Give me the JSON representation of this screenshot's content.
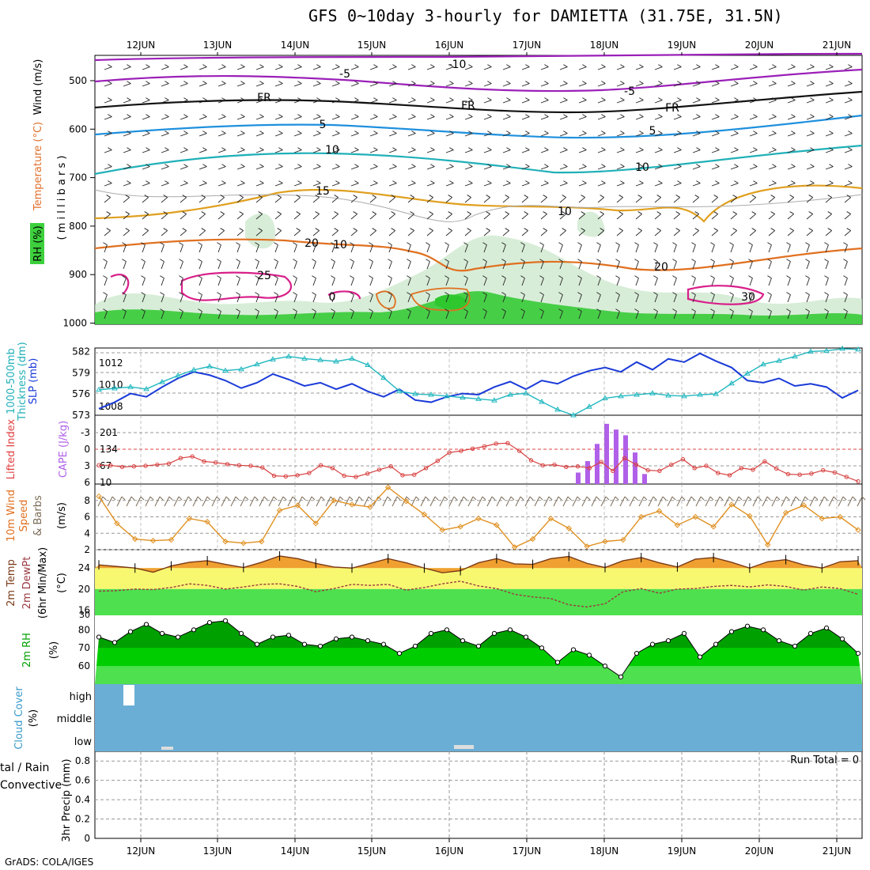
{
  "title": "GFS 0~10day 3-hourly for DAMIETTA (31.75E, 31.5N)",
  "credit": "GrADS: COLA/IGES",
  "dates": [
    "12JUN",
    "13JUN",
    "14JUN",
    "15JUN",
    "16JUN",
    "17JUN",
    "18JUN",
    "19JUN",
    "20JUN",
    "21JUN"
  ],
  "colors": {
    "rh_green": "#3dd03d",
    "slp_line": "#1a3ad8",
    "thick_line": "#22b8c0",
    "lifted_line": "#d84040",
    "cape_bar": "#b060e8",
    "wind_line": "#e09020",
    "temp_fill": "#f0a030",
    "dew_fill": "#f8f870",
    "rh_fill": "#00a000",
    "cloud_bg": "#6aaed6",
    "precip_grid": "#999999"
  },
  "panels": {
    "profile": {
      "ylabel_rh": "RH (%)",
      "ylabel_temp": "Temperature (°C)",
      "ylabel_wind": "Wind (m/s)",
      "ylabel_units": "( m i l l i b a r s )",
      "y_ticks": [
        "500",
        "600",
        "700",
        "800",
        "900",
        "1000"
      ],
      "contour_labels": [
        "-10",
        "-5",
        "-5",
        "FR",
        "FR",
        "FR",
        "5",
        "5",
        "10",
        "10",
        "15",
        "20",
        "20",
        "25",
        "0",
        "10",
        "10",
        "30"
      ]
    },
    "slp": {
      "ylabel_thick": "1000-500mb",
      "ylabel_thick2": "Thickness (dm)",
      "ylabel_slp": "SLP (mb)",
      "left_ticks": [
        "582",
        "579",
        "576",
        "573"
      ],
      "right_ticks": [
        "1012",
        "1010",
        "1008"
      ]
    },
    "cape": {
      "ylabel_li": "Lifted Index",
      "ylabel_cape": "CAPE (J/kg)",
      "left_ticks": [
        "-3",
        "0",
        "3",
        "6"
      ],
      "right_ticks": [
        "201",
        "134",
        "67",
        "10"
      ]
    },
    "wind10": {
      "ylabel1": "10m Wind",
      "ylabel2": "Speed",
      "ylabel3": "& Barbs",
      "ylabel4": "(m/s)",
      "y_ticks": [
        "8",
        "6",
        "4",
        "2"
      ]
    },
    "temp2m": {
      "ylabel1": "2m Temp",
      "ylabel2": "2m DewPt",
      "ylabel3": "(6hr Min/Max)",
      "ylabel4": "(°C)",
      "y_ticks": [
        "24",
        "20",
        "16"
      ],
      "bottom_tick": "30"
    },
    "rh2m": {
      "ylabel1": "2m RH",
      "ylabel2": "(%)",
      "y_ticks": [
        "80",
        "70",
        "60"
      ]
    },
    "cloud": {
      "ylabel1": "Cloud Cover",
      "ylabel2": "(%)",
      "levels": [
        "high",
        "middle",
        "low"
      ]
    },
    "precip": {
      "ylabel1": "3hr Precip (mm)",
      "ylabel_total": "tal / Rain",
      "ylabel_conv": "Convective",
      "y_ticks": [
        "0.8",
        "0.6",
        "0.4",
        "0.2",
        "0"
      ],
      "run_total": "Run Total = 0"
    }
  },
  "chart_data": [
    {
      "type": "line",
      "title": "1000-500mb Thickness (dm) and SLP (mb)",
      "series": [
        {
          "name": "SLP (mb)",
          "values": [
            1007.8,
            1008.4,
            1009.2,
            1008.9,
            1009.8,
            1010.6,
            1011.2,
            1010.9,
            1010.4,
            1009.7,
            1010.2,
            1011.0,
            1010.5,
            1009.9,
            1010.2,
            1009.6,
            1010.1,
            1009.4,
            1008.9,
            1009.6,
            1008.6,
            1008.4,
            1008.9,
            1009.2,
            1009.1,
            1009.8,
            1010.3,
            1009.6,
            1010.4,
            1010.1,
            1010.8,
            1011.3,
            1011.6,
            1011.2,
            1012.1,
            1011.4,
            1012.4,
            1012.1,
            1012.9,
            1012.2,
            1011.6,
            1010.4,
            1010.2,
            1010.6,
            1009.9,
            1010.1,
            1009.8,
            1008.8,
            1009.5
          ],
          "color": "#1a3ad8"
        },
        {
          "name": "1000-500mb Thickness (dm)",
          "values": [
            576.6,
            576.8,
            577.0,
            576.7,
            577.7,
            578.6,
            579.4,
            579.9,
            579.3,
            579.5,
            580.2,
            580.9,
            581.3,
            581.0,
            580.8,
            580.6,
            581.0,
            580.1,
            578.3,
            576.4,
            576.0,
            575.9,
            575.7,
            575.5,
            575.3,
            575.1,
            575.9,
            576.1,
            574.9,
            573.8,
            573.0,
            574.2,
            575.4,
            575.7,
            575.9,
            576.1,
            575.8,
            575.7,
            575.9,
            576.0,
            577.5,
            578.9,
            580.2,
            580.7,
            581.3,
            582.0,
            582.1,
            582.4,
            582.3
          ],
          "color": "#22b8c0"
        }
      ]
    },
    {
      "type": "bar",
      "title": "CAPE (J/kg)",
      "x_index": [
        1,
        2,
        3,
        4,
        5,
        6,
        7,
        8,
        9,
        10,
        11,
        12,
        13,
        14,
        15,
        16,
        17,
        18,
        19,
        20,
        21,
        22,
        23,
        24,
        25,
        26,
        27,
        28,
        29,
        30,
        31,
        32,
        33,
        34,
        35,
        36,
        37,
        38,
        39,
        40,
        41,
        42,
        43,
        44,
        45,
        46,
        47,
        48,
        49,
        50,
        51,
        52,
        53,
        54,
        55,
        56,
        57,
        58,
        59,
        60,
        61,
        62,
        63,
        64,
        65,
        66,
        67,
        68,
        69,
        70,
        71,
        72,
        73,
        74,
        75,
        76,
        77,
        78,
        79,
        80
      ],
      "values": [
        0,
        0,
        0,
        0,
        0,
        0,
        0,
        0,
        0,
        0,
        0,
        0,
        0,
        0,
        0,
        0,
        0,
        0,
        0,
        0,
        0,
        0,
        0,
        0,
        0,
        0,
        0,
        0,
        0,
        0,
        0,
        0,
        0,
        0,
        0,
        0,
        0,
        0,
        0,
        0,
        0,
        0,
        0,
        0,
        0,
        0,
        0,
        0,
        0,
        0,
        40,
        80,
        140,
        210,
        190,
        170,
        110,
        35,
        0,
        0,
        0,
        0,
        0,
        0,
        0,
        0,
        0,
        0,
        0,
        0,
        0,
        0,
        0,
        0,
        0,
        0,
        0,
        0,
        0,
        0
      ]
    },
    {
      "type": "line",
      "title": "10m Wind Speed (m/s)",
      "series": [
        {
          "name": "Speed",
          "values": [
            8.5,
            5.2,
            3.3,
            3.1,
            3.2,
            5.8,
            5.4,
            3.0,
            2.8,
            3.0,
            6.8,
            7.4,
            5.2,
            8.0,
            7.5,
            7.2,
            9.6,
            7.9,
            6.3,
            4.4,
            4.8,
            5.8,
            5.0,
            2.3,
            3.3,
            5.8,
            4.6,
            2.4,
            3.0,
            3.2,
            6.0,
            6.7,
            5.0,
            6.0,
            4.8,
            7.5,
            6.1,
            2.6,
            6.5,
            7.4,
            5.8,
            6.0,
            4.4
          ],
          "color": "#e09020"
        }
      ]
    },
    {
      "type": "area",
      "title": "2m Temp / 2m DewPt (6hr Min/Max) (°C)",
      "series": [
        {
          "name": "2m Temp",
          "values": [
            24.6,
            24.3,
            24.0,
            23.2,
            24.4,
            25.1,
            25.4,
            24.7,
            24.1,
            25.1,
            26.3,
            25.8,
            24.9,
            24.2,
            24.0,
            24.9,
            25.8,
            25.0,
            24.0,
            23.1,
            23.5,
            25.0,
            25.8,
            24.8,
            24.7,
            25.8,
            26.2,
            24.9,
            24.1,
            25.4,
            26.0,
            25.0,
            24.2,
            25.7,
            26.0,
            25.1,
            24.0,
            25.2,
            25.6,
            24.6,
            24.0,
            25.2,
            25.4
          ],
          "color": "#7a3a18"
        },
        {
          "name": "2m DewPt",
          "values": [
            19.6,
            19.7,
            20.0,
            19.9,
            20.3,
            21.0,
            20.7,
            20.0,
            20.4,
            20.9,
            21.0,
            20.5,
            19.5,
            20.1,
            20.9,
            20.7,
            20.9,
            19.8,
            20.3,
            21.0,
            21.5,
            20.6,
            20.1,
            19.0,
            18.5,
            18.2,
            17.0,
            16.6,
            17.2,
            19.5,
            20.1,
            19.2,
            20.0,
            20.1,
            20.5,
            20.7,
            20.4,
            20.8,
            20.5,
            19.8,
            20.4,
            20.1,
            19.0
          ],
          "color": "#b04030"
        }
      ]
    },
    {
      "type": "area",
      "title": "2m RH (%)",
      "series": [
        {
          "name": "2m RH",
          "values": [
            76,
            73,
            79,
            83,
            78,
            76,
            80,
            84,
            85,
            78,
            72,
            76,
            77,
            72,
            71,
            75,
            76,
            74,
            72,
            67,
            71,
            78,
            80,
            74,
            71,
            78,
            80,
            76,
            70,
            62,
            69,
            66,
            60,
            54,
            67,
            72,
            74,
            78,
            65,
            72,
            79,
            82,
            80,
            74,
            71,
            78,
            81,
            75,
            67
          ],
          "color": "#00a000"
        }
      ]
    },
    {
      "type": "heatmap",
      "title": "Cloud Cover (%)",
      "levels": [
        "high",
        "middle",
        "low"
      ],
      "cells": [
        {
          "level": "high",
          "date": "12JUN",
          "value": "clear"
        },
        {
          "level": "low",
          "date": "12JUN",
          "value": "small"
        },
        {
          "level": "low",
          "date": "16JUN",
          "value": "small"
        }
      ]
    },
    {
      "type": "bar",
      "title": "3hr Precip (mm)",
      "ylim": [
        0,
        0.9
      ],
      "values": [],
      "run_total": "Run Total = 0"
    }
  ]
}
